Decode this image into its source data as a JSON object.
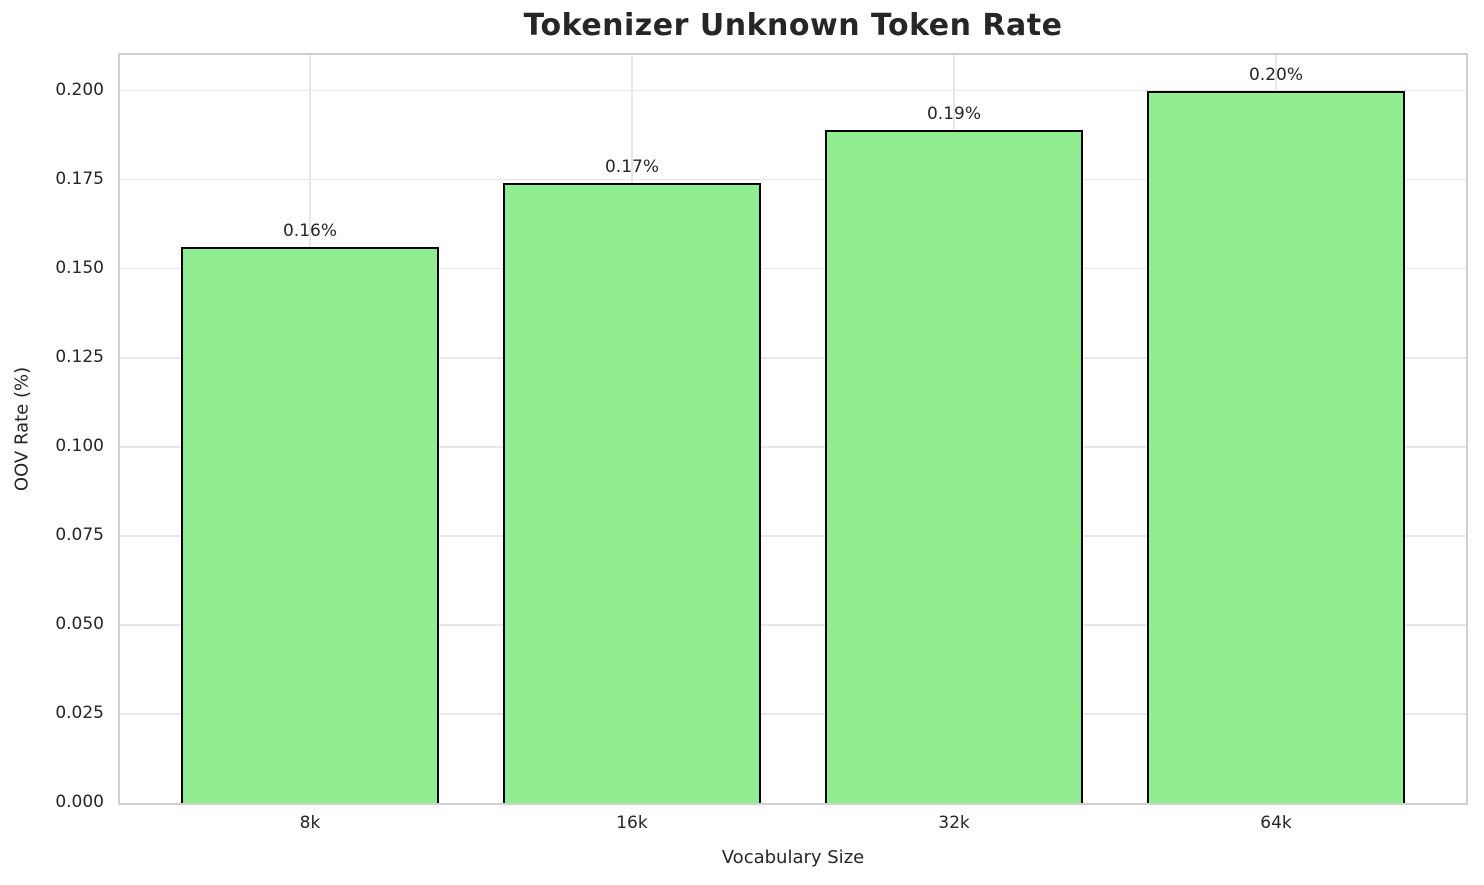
{
  "chart_data": {
    "type": "bar",
    "title": "Tokenizer Unknown Token Rate",
    "xlabel": "Vocabulary Size",
    "ylabel": "OOV Rate (%)",
    "categories": [
      "8k",
      "16k",
      "32k",
      "64k"
    ],
    "values": [
      0.156,
      0.174,
      0.189,
      0.2
    ],
    "bar_value_labels": [
      "0.16%",
      "0.17%",
      "0.19%",
      "0.20%"
    ],
    "ytick_labels": [
      "0.000",
      "0.025",
      "0.050",
      "0.075",
      "0.100",
      "0.125",
      "0.150",
      "0.175",
      "0.200"
    ],
    "ylim": [
      0,
      0.21
    ],
    "xlim": [
      -0.59,
      3.59
    ],
    "bar_width_units": 0.8,
    "grid": "on",
    "colors": {
      "bar_fill": "#90EE90",
      "bar_edge": "#000000",
      "gridline": "#e7e7e7",
      "spine": "#d0d0d0",
      "text": "#262626"
    }
  }
}
